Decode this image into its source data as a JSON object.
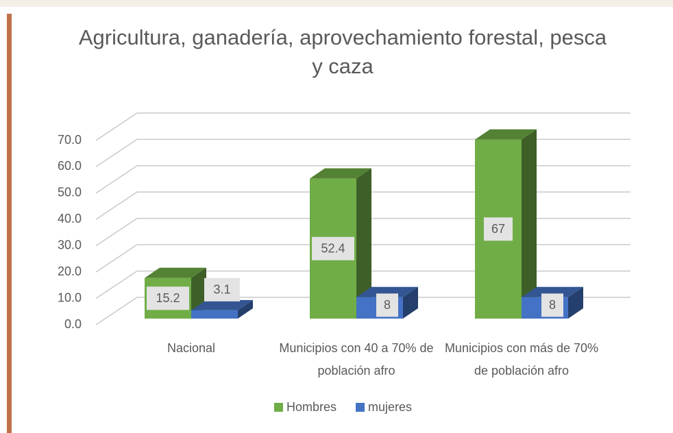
{
  "chart_data": {
    "type": "bar3d",
    "title": "Agricultura, ganadería, aprovechamiento forestal, pesca y caza",
    "categories": [
      "Nacional",
      "Municipios con 40 a 70% de población afro",
      "Municipios con más de 70% de población afro"
    ],
    "series": [
      {
        "name": "Hombres",
        "color": "#70ad47",
        "values": [
          15.2,
          52.4,
          67
        ]
      },
      {
        "name": "mujeres",
        "color": "#4472c4",
        "values": [
          3.1,
          8,
          8
        ]
      }
    ],
    "ylim": [
      0,
      70
    ],
    "yticks": [
      {
        "value": 0,
        "label": "0.0"
      },
      {
        "value": 10,
        "label": "10.0"
      },
      {
        "value": 20,
        "label": "20.0"
      },
      {
        "value": 30,
        "label": "30.0"
      },
      {
        "value": 40,
        "label": "40.0"
      },
      {
        "value": 50,
        "label": "50.0"
      },
      {
        "value": 60,
        "label": "60.0"
      },
      {
        "value": 70,
        "label": "70.0"
      }
    ],
    "grid": true,
    "legend": "bottom"
  }
}
